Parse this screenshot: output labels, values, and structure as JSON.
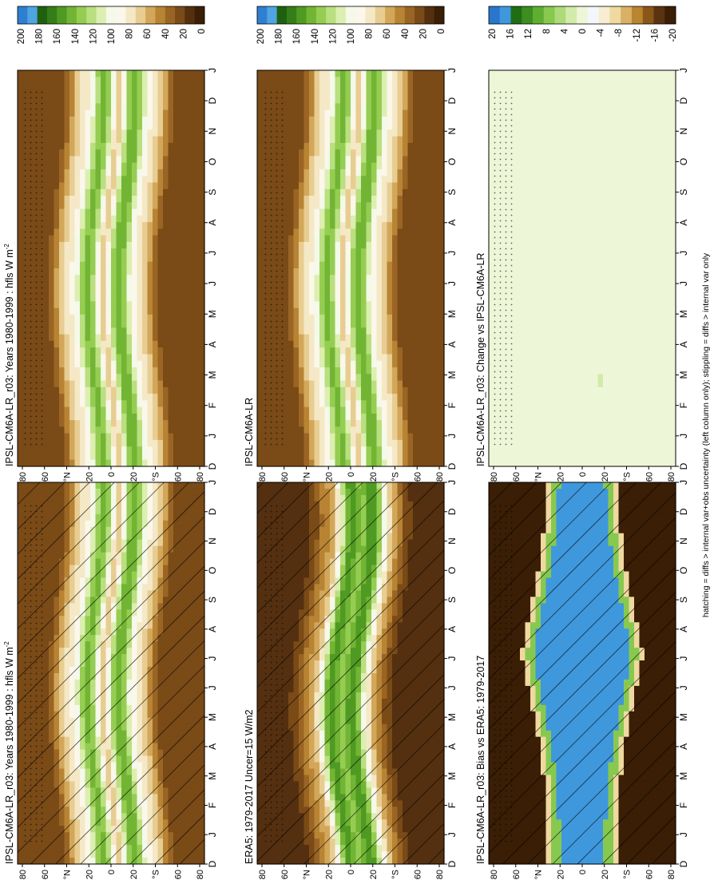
{
  "figure": {
    "footnote": "hatching = diffs > internal var+obs uncertainty (left column only); stippling = diffs > internal var only"
  },
  "colors": {
    "abs": [
      "#ffffff",
      "#3a1e05",
      "#543010",
      "#7a4a17",
      "#9a6524",
      "#b88434",
      "#d3a75a",
      "#e8cd92",
      "#f5e8c6",
      "#fbf7ea",
      "#f4f9e9",
      "#dcefb0",
      "#b9df7f",
      "#95cd52",
      "#72b534",
      "#4f9a22",
      "#357d19",
      "#1f6010",
      "#4fa4e2",
      "#2f7fd1"
    ],
    "diff": [
      "#ffffff",
      "#3a1e05",
      "#5a3410",
      "#8b5719",
      "#b98530",
      "#d9b066",
      "#efd9a0",
      "#f7edd0",
      "#f3f7fb",
      "#eef6d8",
      "#d3ebaa",
      "#aedb7a",
      "#87c94f",
      "#5fae32",
      "#3c8e21",
      "#1f6e14",
      "#3f98dc",
      "#2a76cc"
    ]
  },
  "chart_data": [
    {
      "type": "heatmap",
      "title": "IPSL-CM6A-LR_r03: Years 1980-1999 : hfls W m",
      "title_sup": "-2",
      "x_ticks": [
        "D",
        "J",
        "F",
        "M",
        "A",
        "M",
        "J",
        "J",
        "A",
        "S",
        "O",
        "N",
        "D",
        "J"
      ],
      "y_ticks": [
        "80",
        "60",
        "°N",
        "20",
        "0",
        "20",
        "°S",
        "60",
        "80"
      ],
      "color_scale": "abs",
      "field": "model",
      "hatching": true,
      "stippling": true,
      "colorbar": {
        "ticks": [
          "200",
          "180",
          "160",
          "140",
          "120",
          "100",
          "80",
          "60",
          "40",
          "20",
          "0"
        ]
      }
    },
    {
      "type": "heatmap",
      "title": "IPSL-CM6A-LR_r03: Years 1980-1999 : hfls W m",
      "title_sup": "-2",
      "x_ticks": [
        "D",
        "J",
        "F",
        "M",
        "A",
        "M",
        "J",
        "J",
        "A",
        "S",
        "O",
        "N",
        "D",
        "J"
      ],
      "y_ticks": [
        "80",
        "60",
        "°N",
        "20",
        "0",
        "20",
        "°S",
        "60",
        "80"
      ],
      "color_scale": "abs",
      "field": "model",
      "hatching": false,
      "stippling": true,
      "colorbar": {
        "ticks": [
          "200",
          "180",
          "160",
          "140",
          "120",
          "100",
          "80",
          "60",
          "40",
          "20",
          "0"
        ]
      }
    },
    {
      "type": "heatmap",
      "title": "ERA5: 1979-2017 Uncer=15 W/m2",
      "title_sup": "",
      "x_ticks": [
        "D",
        "J",
        "F",
        "M",
        "A",
        "M",
        "J",
        "J",
        "A",
        "S",
        "O",
        "N",
        "D",
        "J"
      ],
      "y_ticks": [
        "80",
        "60",
        "°N",
        "20",
        "0",
        "20",
        "°S",
        "60",
        "80"
      ],
      "color_scale": "abs",
      "field": "obs",
      "hatching": true,
      "stippling": true,
      "colorbar": {
        "ticks": [
          "200",
          "180",
          "160",
          "140",
          "120",
          "100",
          "80",
          "60",
          "40",
          "20",
          "0"
        ]
      }
    },
    {
      "type": "heatmap",
      "title": "IPSL-CM6A-LR",
      "title_sup": "",
      "x_ticks": [
        "D",
        "J",
        "F",
        "M",
        "A",
        "M",
        "J",
        "J",
        "A",
        "S",
        "O",
        "N",
        "D",
        "J"
      ],
      "y_ticks": [
        "80",
        "60",
        "°N",
        "20",
        "0",
        "20",
        "°S",
        "60",
        "80"
      ],
      "color_scale": "abs",
      "field": "model",
      "hatching": false,
      "stippling": true,
      "colorbar": {
        "ticks": [
          "200",
          "180",
          "160",
          "140",
          "120",
          "100",
          "80",
          "60",
          "40",
          "20",
          "0"
        ]
      }
    },
    {
      "type": "heatmap",
      "title": "IPSL-CM6A-LR_r03: Bias vs ERA5: 1979-2017",
      "title_sup": "",
      "x_ticks": [
        "D",
        "J",
        "F",
        "M",
        "A",
        "M",
        "J",
        "J",
        "A",
        "S",
        "O",
        "N",
        "D",
        "J"
      ],
      "y_ticks": [
        "80",
        "60",
        "°N",
        "20",
        "0",
        "20",
        "°S",
        "60",
        "80"
      ],
      "color_scale": "diff",
      "field": "bias",
      "hatching": true,
      "stippling": true,
      "colorbar": {
        "ticks": [
          "20",
          "16",
          "12",
          "8",
          "4",
          "0",
          "-4",
          "-8",
          "-12",
          "-16",
          "-20"
        ]
      }
    },
    {
      "type": "heatmap",
      "title": "IPSL-CM6A-LR_r03: Change vs IPSL-CM6A-LR",
      "title_sup": "",
      "x_ticks": [
        "D",
        "J",
        "F",
        "M",
        "A",
        "M",
        "J",
        "J",
        "A",
        "S",
        "O",
        "N",
        "D",
        "J"
      ],
      "y_ticks": [
        "80",
        "60",
        "°N",
        "20",
        "0",
        "20",
        "°S",
        "60",
        "80"
      ],
      "color_scale": "diff",
      "field": "change",
      "hatching": false,
      "stippling": true,
      "colorbar": {
        "ticks": [
          "20",
          "16",
          "12",
          "8",
          "4",
          "0",
          "-4",
          "-8",
          "-12",
          "-16",
          "-20"
        ]
      }
    }
  ]
}
